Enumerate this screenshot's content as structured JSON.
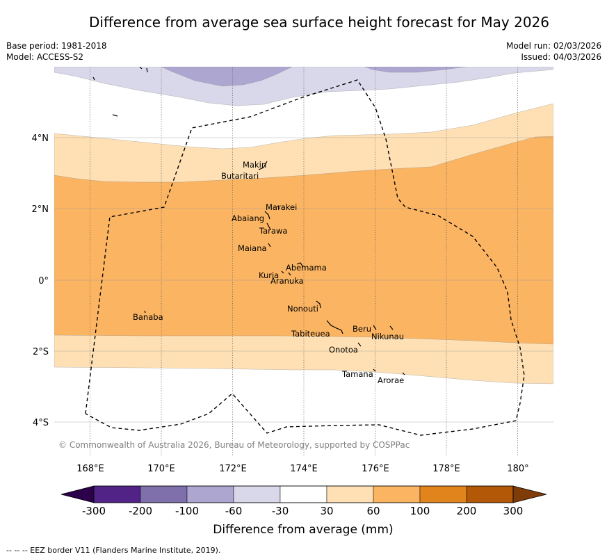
{
  "title": "Difference from average sea surface height forecast for May 2026",
  "base_period": "Base period: 1981-2018",
  "model": "Model: ACCESS-S2",
  "model_run": "Model run: 02/03/2026",
  "issued": "Issued: 04/03/2026",
  "copyright": "© Commonwealth of Australia 2026, Bureau of Meteorology, supported by COSPPac",
  "lon_ticks": [
    "168°E",
    "170°E",
    "172°E",
    "174°E",
    "176°E",
    "178°E",
    "180°"
  ],
  "lat_ticks": [
    "4°N",
    "2°N",
    "0°",
    "2°S",
    "4°S"
  ],
  "islands": [
    {
      "name": "Makin"
    },
    {
      "name": "Butaritari"
    },
    {
      "name": "Marakei"
    },
    {
      "name": "Abaiang"
    },
    {
      "name": "Tarawa"
    },
    {
      "name": "Maiana"
    },
    {
      "name": "Abemama"
    },
    {
      "name": "Kuria"
    },
    {
      "name": "Aranuka"
    },
    {
      "name": "Nonouti"
    },
    {
      "name": "Banaba"
    },
    {
      "name": "Tabiteuea"
    },
    {
      "name": "Beru"
    },
    {
      "name": "Nikunau"
    },
    {
      "name": "Onotoa"
    },
    {
      "name": "Tamana"
    },
    {
      "name": "Arorae"
    }
  ],
  "colorbar": {
    "label": "Difference from average (mm)",
    "ticks": [
      "-300",
      "-200",
      "-100",
      "-60",
      "-30",
      "30",
      "60",
      "100",
      "200",
      "300"
    ],
    "colors": [
      "#512387",
      "#7f6fab",
      "#aca6d0",
      "#d8d8ea",
      "#ffffff",
      "#fee0b4",
      "#fbb462",
      "#e2841c",
      "#b35806"
    ],
    "extend_low_color": "#2d004b",
    "extend_high_color": "#7f3b08"
  },
  "footnote": "-- -- -- EEZ border V11 (Flanders Marine Institute, 2019)."
}
